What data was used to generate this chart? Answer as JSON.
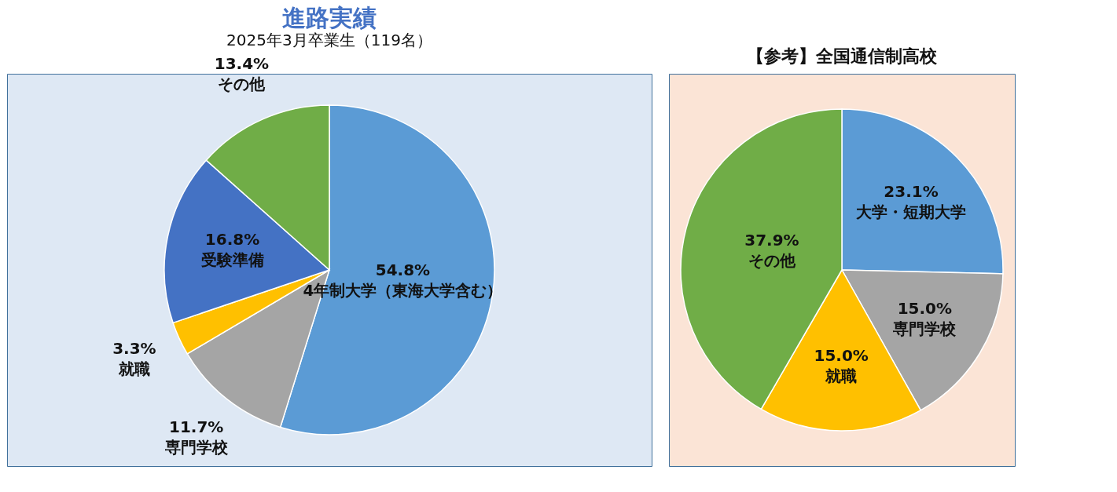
{
  "chart_data": [
    {
      "type": "pie",
      "title": "進路実績",
      "subtitle": "2025年3月卒業生（119名）",
      "categories": [
        "4年制大学（東海大学含む）",
        "専門学校",
        "就職",
        "受験準備",
        "その他"
      ],
      "values": [
        54.8,
        11.7,
        3.3,
        16.8,
        13.4
      ],
      "colors": [
        "#5b9bd5",
        "#a5a5a5",
        "#ffc000",
        "#4472c4",
        "#70ad47"
      ],
      "value_labels": [
        "54.8%",
        "11.7%",
        "3.3%",
        "16.8%",
        "13.4%"
      ]
    },
    {
      "type": "pie",
      "title": "【参考】全国通信制高校",
      "categories": [
        "大学・短期大学",
        "専門学校",
        "就職",
        "その他"
      ],
      "values": [
        23.1,
        15.0,
        15.0,
        37.9
      ],
      "colors": [
        "#5b9bd5",
        "#a5a5a5",
        "#ffc000",
        "#70ad47"
      ],
      "value_labels": [
        "23.1%",
        "15.0%",
        "15.0%",
        "37.9%"
      ]
    }
  ]
}
